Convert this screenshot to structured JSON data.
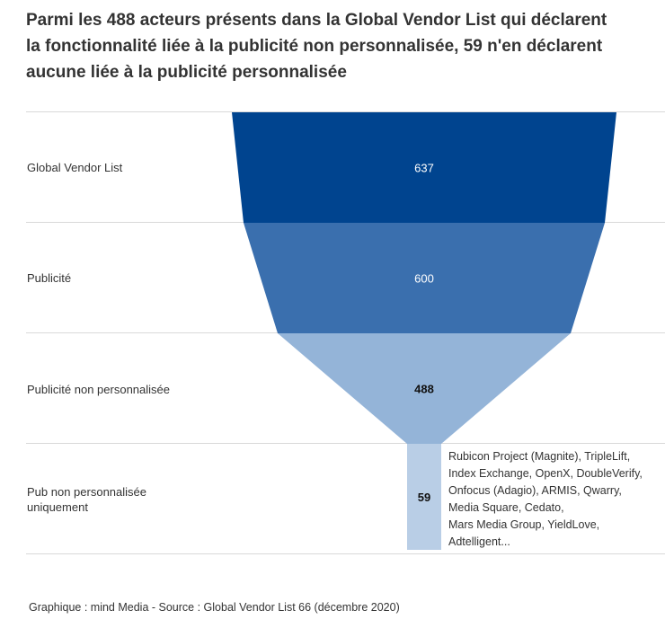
{
  "title_lines": [
    "Parmi les 488 acteurs présents dans la Global Vendor List qui déclarent",
    "la fonctionnalité liée à la publicité non personnalisée, 59 n'en déclarent",
    "aucune liée à la publicité personnalisée"
  ],
  "chart_data": {
    "type": "funnel",
    "title": "Parmi les 488 acteurs présents dans la Global Vendor List qui déclarent la fonctionnalité liée à la publicité non personnalisée, 59 n'en déclarent aucune liée à la publicité personnalisée",
    "stages": [
      {
        "label": "Global Vendor List",
        "value": 637,
        "color": "#00448f"
      },
      {
        "label": "Publicité",
        "value": 600,
        "color": "#3a6fae"
      },
      {
        "label": "Publicité non personnalisée",
        "value": 488,
        "color": "#94b4d8"
      },
      {
        "label": "Pub non personnalisée uniquement",
        "value": 59,
        "color": "#b9cee6"
      }
    ],
    "annotation_lines": [
      "Rubicon Project (Magnite), TripleLift,",
      "Index Exchange, OpenX, DoubleVerify,",
      "Onfocus (Adagio), ARMIS, Qwarry,",
      "Media Square, Cedato,",
      "Mars Media Group, YieldLove,",
      "Adtelligent..."
    ],
    "source": "Graphique : mind Media - Source : Global Vendor List 66 (décembre 2020)"
  }
}
